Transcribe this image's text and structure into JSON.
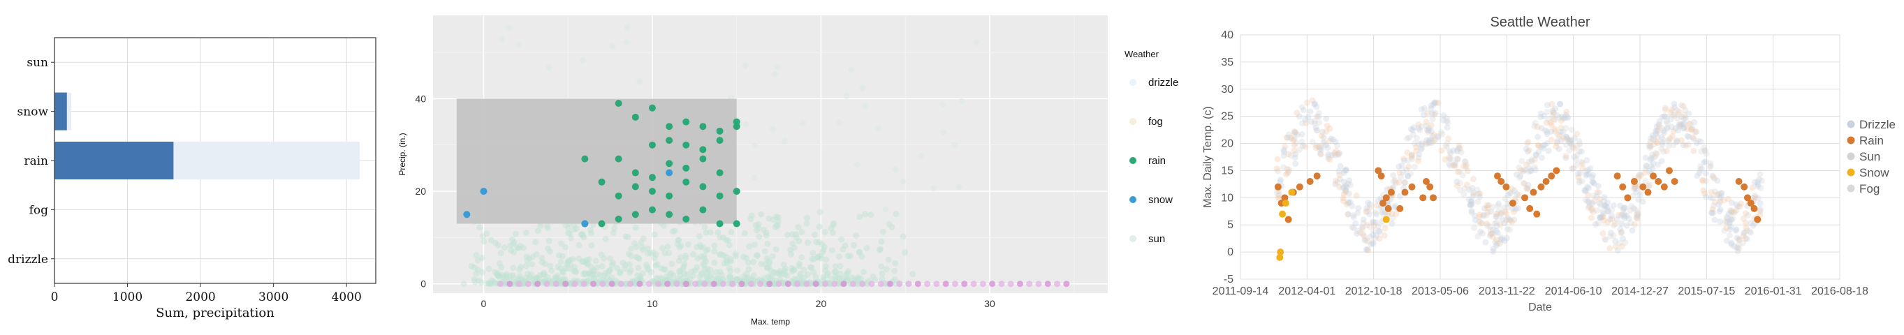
{
  "colors": {
    "bar_selected": "#4376b1",
    "bar_background": "#e8eef5",
    "panel2_bg": "#ebebeb",
    "selection_rect": "#c4c4c4",
    "drizzle": "#e8f3fb",
    "fog": "#f7eedc",
    "rain": "#2ca877",
    "snow": "#3a9bd6",
    "sun": "#e2eee9",
    "panel3_drizzle": "#c9d3e0",
    "panel3_rain": "#d7792f",
    "panel3_sun": "#d3d3d3",
    "panel3_snow": "#f2b11b",
    "panel3_fog": "#d9d9d9"
  },
  "chart_data": [
    {
      "type": "bar",
      "orientation": "horizontal",
      "categories": [
        "sun",
        "snow",
        "rain",
        "fog",
        "drizzle"
      ],
      "series": [
        {
          "values": [
            0,
            170,
            1630,
            0,
            0
          ]
        },
        {
          "values": [
            0,
            230,
            4180,
            0,
            0
          ]
        }
      ],
      "xlabel": "Sum, precipitation",
      "xticks": [
        "0",
        "1000",
        "2000",
        "3000",
        "4000"
      ],
      "xlim": [
        0,
        4400
      ]
    },
    {
      "type": "scatter",
      "xlabel": "Max. temp",
      "ylabel": "Precip. (in.)",
      "xticks": [
        "0",
        "10",
        "20",
        "30"
      ],
      "yticks": [
        "0",
        "20",
        "40"
      ],
      "xlim": [
        -3,
        37
      ],
      "ylim": [
        -2,
        58
      ],
      "selection": {
        "x": [
          -1.6,
          15
        ],
        "y": [
          13,
          40
        ]
      },
      "legend_title": "Weather",
      "legend": [
        "drizzle",
        "fog",
        "rain",
        "snow",
        "sun"
      ],
      "highlighted": {
        "rain": [
          [
            8,
            39
          ],
          [
            9,
            36
          ],
          [
            10,
            38
          ],
          [
            11,
            34
          ],
          [
            12,
            35
          ],
          [
            13,
            34
          ],
          [
            14,
            33
          ],
          [
            15,
            35
          ],
          [
            15,
            34
          ],
          [
            6,
            27
          ],
          [
            8,
            27
          ],
          [
            10,
            30
          ],
          [
            11,
            31
          ],
          [
            12,
            30
          ],
          [
            13,
            29
          ],
          [
            14,
            31
          ],
          [
            7,
            22
          ],
          [
            9,
            24
          ],
          [
            10,
            23
          ],
          [
            11,
            26
          ],
          [
            12,
            25
          ],
          [
            13,
            27
          ],
          [
            14,
            24
          ],
          [
            8,
            19
          ],
          [
            9,
            21
          ],
          [
            10,
            20
          ],
          [
            11,
            19
          ],
          [
            12,
            22
          ],
          [
            13,
            21
          ],
          [
            14,
            19
          ],
          [
            15,
            20
          ],
          [
            6,
            13
          ],
          [
            7,
            13
          ],
          [
            8,
            14
          ],
          [
            9,
            15
          ],
          [
            10,
            16
          ],
          [
            11,
            15
          ],
          [
            12,
            14
          ],
          [
            13,
            16
          ],
          [
            14,
            13
          ],
          [
            15,
            13
          ]
        ],
        "snow": [
          [
            -1,
            15
          ],
          [
            0,
            20
          ],
          [
            6,
            13
          ],
          [
            11,
            24
          ]
        ]
      }
    },
    {
      "type": "scatter",
      "title": "Seattle Weather",
      "xlabel": "Date",
      "ylabel": "Max. Daily Temp. (c)",
      "xticks": [
        "2011-09-14",
        "2012-04-01",
        "2012-10-18",
        "2013-05-06",
        "2013-11-22",
        "2014-06-10",
        "2014-12-27",
        "2015-07-15",
        "2016-01-31",
        "2016-08-18"
      ],
      "yticks": [
        "-5",
        "0",
        "5",
        "10",
        "15",
        "20",
        "25",
        "30",
        "35",
        "40"
      ],
      "ylim": [
        -5,
        40
      ],
      "legend": [
        "Drizzle",
        "Rain",
        "Sun",
        "Snow",
        "Fog"
      ],
      "highlighted": {
        "Rain": [
          [
            "2012-01-05",
            12
          ],
          [
            "2012-01-15",
            9
          ],
          [
            "2012-01-25",
            10
          ],
          [
            "2012-02-05",
            6
          ],
          [
            "2012-02-20",
            11
          ],
          [
            "2012-03-10",
            12
          ],
          [
            "2012-04-10",
            13
          ],
          [
            "2012-05-01",
            14
          ],
          [
            "2012-11-01",
            15
          ],
          [
            "2012-11-10",
            14
          ],
          [
            "2012-11-15",
            9
          ],
          [
            "2012-11-25",
            10
          ],
          [
            "2012-12-01",
            8
          ],
          [
            "2012-12-10",
            11
          ],
          [
            "2013-01-05",
            8
          ],
          [
            "2013-01-20",
            11
          ],
          [
            "2013-02-10",
            12
          ],
          [
            "2013-03-15",
            10
          ],
          [
            "2013-03-25",
            13
          ],
          [
            "2013-04-05",
            12
          ],
          [
            "2013-04-15",
            10
          ],
          [
            "2013-10-25",
            14
          ],
          [
            "2013-11-05",
            13
          ],
          [
            "2013-11-20",
            12
          ],
          [
            "2013-12-10",
            9
          ],
          [
            "2014-01-15",
            10
          ],
          [
            "2014-01-30",
            8
          ],
          [
            "2014-02-10",
            11
          ],
          [
            "2014-02-20",
            7
          ],
          [
            "2014-03-05",
            12
          ],
          [
            "2014-03-20",
            13
          ],
          [
            "2014-04-05",
            14
          ],
          [
            "2014-04-20",
            15
          ],
          [
            "2014-10-20",
            14
          ],
          [
            "2014-11-05",
            12
          ],
          [
            "2014-11-20",
            10
          ],
          [
            "2014-12-10",
            13
          ],
          [
            "2015-01-05",
            12
          ],
          [
            "2015-01-20",
            11
          ],
          [
            "2015-02-05",
            14
          ],
          [
            "2015-02-20",
            13
          ],
          [
            "2015-03-10",
            12
          ],
          [
            "2015-03-25",
            15
          ],
          [
            "2015-04-10",
            13
          ],
          [
            "2015-10-20",
            13
          ],
          [
            "2015-11-05",
            12
          ],
          [
            "2015-11-15",
            10
          ],
          [
            "2015-11-25",
            9
          ],
          [
            "2015-12-05",
            8
          ],
          [
            "2015-12-15",
            6
          ]
        ],
        "Snow": [
          [
            "2012-01-10",
            -1
          ],
          [
            "2012-01-12",
            0
          ],
          [
            "2012-01-18",
            7
          ],
          [
            "2012-01-28",
            9
          ],
          [
            "2012-02-15",
            11
          ],
          [
            "2012-11-25",
            6
          ]
        ]
      }
    }
  ]
}
